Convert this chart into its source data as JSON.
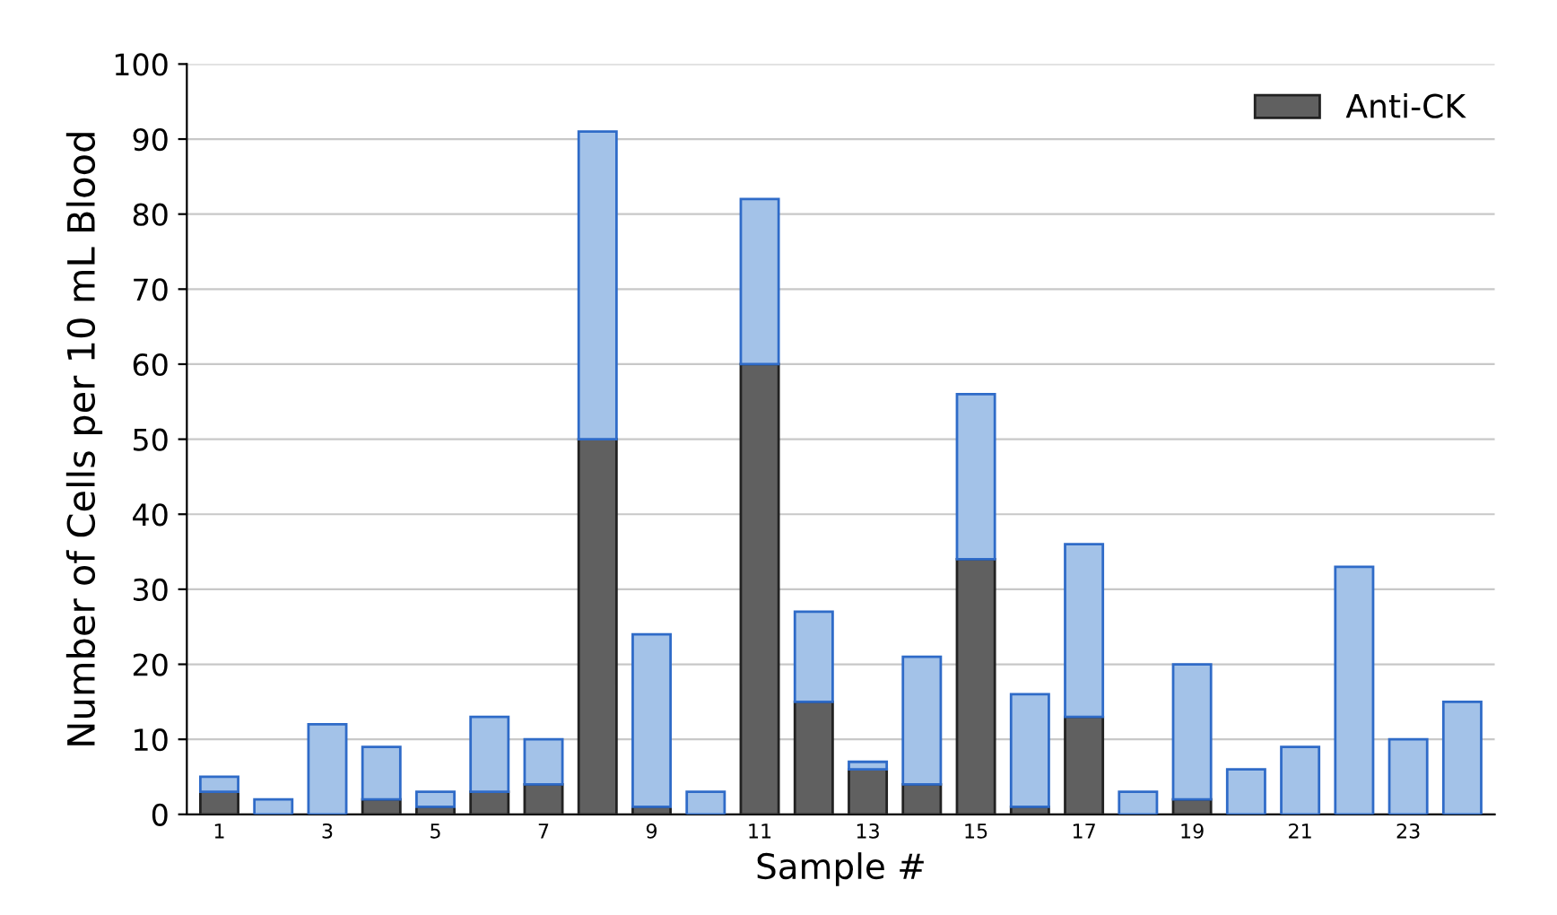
{
  "chart_data": {
    "type": "bar",
    "stacked": true,
    "xlabel": "Sample #",
    "ylabel": "Number of Cells per 10 mL Blood",
    "categories": [
      "1",
      null,
      "3",
      null,
      "5",
      null,
      "7",
      null,
      "9",
      null,
      "11",
      null,
      "13",
      null,
      "15",
      null,
      "17",
      null,
      "19",
      null,
      "21",
      null,
      "23",
      null
    ],
    "series": [
      {
        "name": "Anti-CK",
        "color": "#606060",
        "values": [
          3,
          0,
          0,
          2,
          1,
          3,
          4,
          50,
          1,
          0,
          60,
          15,
          6,
          4,
          34,
          1,
          13,
          0,
          2,
          0,
          0,
          0,
          0,
          0
        ]
      },
      {
        "color": "#a3c2e8",
        "values": [
          2,
          2,
          12,
          7,
          2,
          10,
          6,
          41,
          23,
          3,
          22,
          12,
          1,
          17,
          22,
          15,
          23,
          3,
          18,
          6,
          9,
          33,
          10,
          15
        ]
      }
    ],
    "ylim": [
      0,
      100
    ],
    "yticks": [
      0,
      10,
      20,
      30,
      40,
      50,
      60,
      70,
      80,
      90,
      100
    ],
    "grid": "y",
    "legend": "top right"
  }
}
